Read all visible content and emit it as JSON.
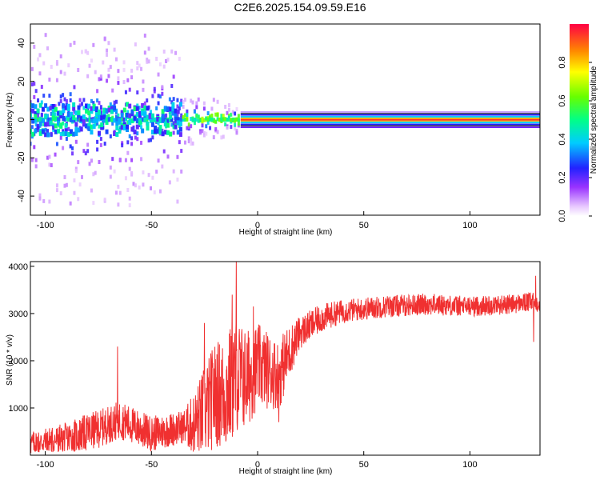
{
  "title": "C2E6.2025.154.09.59.E16",
  "colors": {
    "snr_line": "#f03030",
    "center_line": "#000000",
    "background": "#ffffff"
  },
  "chart_data": [
    {
      "type": "heatmap",
      "xlabel": "Height of straight line (km)",
      "ylabel": "Frequency (Hz)",
      "xlim": [
        -107,
        133
      ],
      "ylim": [
        -50,
        50
      ],
      "xticks": [
        -100,
        -50,
        0,
        50,
        100
      ],
      "yticks": [
        -40,
        -20,
        0,
        20,
        40
      ],
      "colorbar": {
        "label": "Normalized spectral amplitude",
        "range": [
          0,
          1
        ],
        "ticks": [
          "0.0",
          "0.2",
          "0.4",
          "0.6",
          "0.8"
        ]
      },
      "description_bands": [
        {
          "x_range": [
            -107,
            -35
          ],
          "freq_spread": 45,
          "peak_amplitude": 0.55
        },
        {
          "x_range": [
            -35,
            -8
          ],
          "freq_spread": 10,
          "peak_amplitude": 0.6
        },
        {
          "x_range": [
            -8,
            133
          ],
          "freq_spread": 2,
          "peak_amplitude": 0.9
        }
      ]
    },
    {
      "type": "line",
      "xlabel": "Height of straight line (km)",
      "ylabel": "SNR (10 * v/v)",
      "xlim": [
        -107,
        133
      ],
      "ylim": [
        0,
        4100
      ],
      "xticks": [
        -100,
        -50,
        0,
        50,
        100
      ],
      "yticks": [
        1000,
        2000,
        3000,
        4000
      ],
      "trend": {
        "x": [
          -107,
          -90,
          -75,
          -65,
          -50,
          -40,
          -30,
          -25,
          -20,
          -15,
          -10,
          -5,
          0,
          5,
          10,
          15,
          20,
          30,
          40,
          50,
          60,
          80,
          100,
          120,
          130,
          133
        ],
        "y": [
          250,
          350,
          550,
          750,
          450,
          550,
          650,
          900,
          1300,
          1300,
          1700,
          1600,
          1900,
          1800,
          1700,
          2200,
          2600,
          2900,
          3050,
          3100,
          3150,
          3200,
          3150,
          3200,
          3250,
          3200
        ]
      },
      "noise_amplitude": {
        "x": [
          -107,
          -80,
          -60,
          -35,
          -25,
          -12,
          0,
          12,
          20,
          40,
          133
        ],
        "amp": [
          250,
          400,
          400,
          350,
          1000,
          1300,
          900,
          700,
          350,
          250,
          200
        ]
      },
      "spikes": [
        {
          "x": -66,
          "y": 2300
        },
        {
          "x": -10,
          "y": 4100
        },
        {
          "x": -12,
          "y": 3400
        },
        {
          "x": -25,
          "y": 2800
        },
        {
          "x": -2,
          "y": 3150
        },
        {
          "x": 10,
          "y": 700
        },
        {
          "x": 130,
          "y": 2400
        },
        {
          "x": 131,
          "y": 3800
        }
      ]
    }
  ]
}
